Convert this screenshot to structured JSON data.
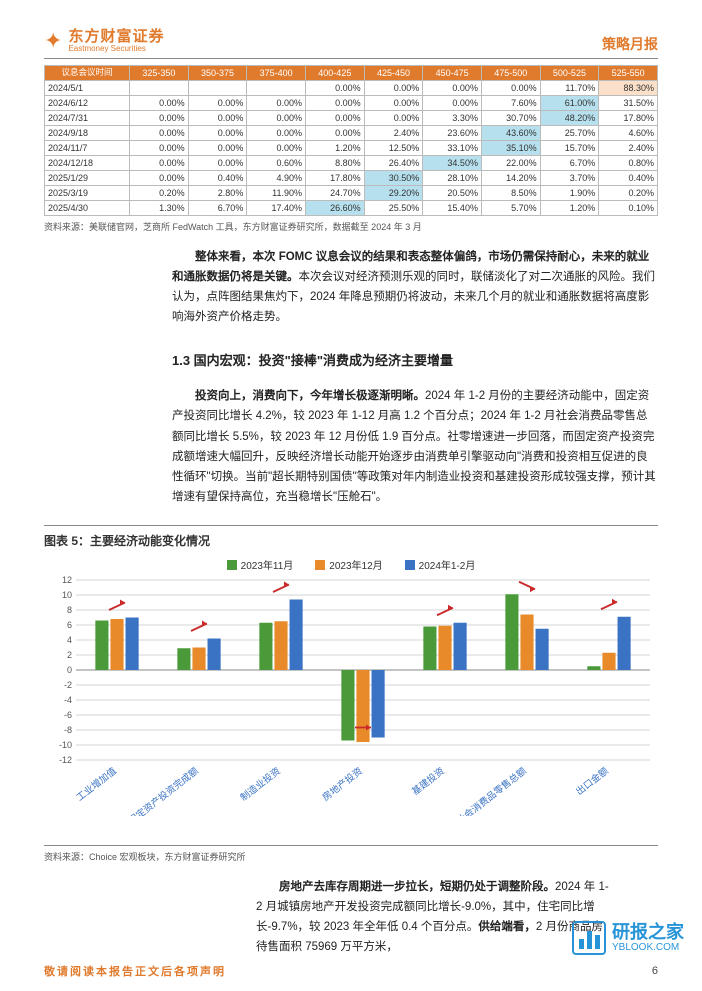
{
  "header": {
    "logo_cn": "东方财富证券",
    "logo_en": "Eastmoney Securities",
    "doc_type": "策略月报"
  },
  "rates_table": {
    "row_header_label": "议息会议时间",
    "col_headers": [
      "325-350",
      "350-375",
      "375-400",
      "400-425",
      "425-450",
      "450-475",
      "475-500",
      "500-525",
      "525-550"
    ],
    "rows": [
      {
        "date": "2024/5/1",
        "cells": [
          "",
          "",
          "",
          "0.00%",
          "0.00%",
          "0.00%",
          "0.00%",
          "11.70%",
          "88.30%"
        ],
        "hl": {
          "8": "peach"
        }
      },
      {
        "date": "2024/6/12",
        "cells": [
          "0.00%",
          "0.00%",
          "0.00%",
          "0.00%",
          "0.00%",
          "0.00%",
          "7.60%",
          "61.00%",
          "31.50%"
        ],
        "hl": {
          "7": "blue"
        }
      },
      {
        "date": "2024/7/31",
        "cells": [
          "0.00%",
          "0.00%",
          "0.00%",
          "0.00%",
          "0.00%",
          "3.30%",
          "30.70%",
          "48.20%",
          "17.80%"
        ],
        "hl": {
          "7": "blue"
        }
      },
      {
        "date": "2024/9/18",
        "cells": [
          "0.00%",
          "0.00%",
          "0.00%",
          "0.00%",
          "2.40%",
          "23.60%",
          "43.60%",
          "25.70%",
          "4.60%"
        ],
        "hl": {
          "6": "blue"
        }
      },
      {
        "date": "2024/11/7",
        "cells": [
          "0.00%",
          "0.00%",
          "0.00%",
          "1.20%",
          "12.50%",
          "33.10%",
          "35.10%",
          "15.70%",
          "2.40%"
        ],
        "hl": {
          "6": "blue"
        }
      },
      {
        "date": "2024/12/18",
        "cells": [
          "0.00%",
          "0.00%",
          "0.60%",
          "8.80%",
          "26.40%",
          "34.50%",
          "22.00%",
          "6.70%",
          "0.80%"
        ],
        "hl": {
          "5": "blue"
        }
      },
      {
        "date": "2025/1/29",
        "cells": [
          "0.00%",
          "0.40%",
          "4.90%",
          "17.80%",
          "30.50%",
          "28.10%",
          "14.20%",
          "3.70%",
          "0.40%"
        ],
        "hl": {
          "4": "blue"
        }
      },
      {
        "date": "2025/3/19",
        "cells": [
          "0.20%",
          "2.80%",
          "11.90%",
          "24.70%",
          "29.20%",
          "20.50%",
          "8.50%",
          "1.90%",
          "0.20%"
        ],
        "hl": {
          "4": "blue"
        }
      },
      {
        "date": "2025/4/30",
        "cells": [
          "1.30%",
          "6.70%",
          "17.40%",
          "26.60%",
          "25.50%",
          "15.40%",
          "5.70%",
          "1.20%",
          "0.10%"
        ],
        "hl": {
          "3": "blue"
        }
      }
    ],
    "source": "资料来源：美联储官网，芝商所 FedWatch 工具，东方财富证券研究所，数据截至 2024 年 3 月"
  },
  "body": {
    "p1_bold_a": "整体来看，本次 FOMC 议息会议的结果和表态整体偏鸽，市场仍需保持耐心，未来的就业和通胀数据仍将是关键。",
    "p1_rest": "本次会议对经济预测乐观的同时，联储淡化了对二次通胀的风险。我们认为，点阵图结果焦灼下，2024 年降息预期仍将波动，未来几个月的就业和通胀数据将高度影响海外资产价格走势。",
    "section_13": "1.3  国内宏观：投资\"接棒\"消费成为经济主要增量",
    "p2_bold": "投资向上，消费向下，今年增长极逐渐明晰。",
    "p2_rest": "2024 年 1-2 月份的主要经济动能中，固定资产投资同比增长 4.2%，较 2023 年 1-12 月高 1.2 个百分点；2024 年 1-2 月社会消费品零售总额同比增长 5.5%，较 2023 年 12 月份低 1.9 百分点。社零增速进一步回落，而固定资产投资完成额增速大幅回升，反映经济增长动能开始逐步由消费单引擎驱动向\"消费和投资相互促进的良性循环\"切换。当前\"超长期特别国债\"等政策对年内制造业投资和基建投资形成较强支撑，预计其增速有望保持高位，充当稳增长\"压舱石\"。",
    "p3_bold": "房地产去库存周期进一步拉长，短期仍处于调整阶段。",
    "p3_rest_a": "2024 年 1-2 月城镇房地产开发投资完成额同比增长-9.0%，其中，住宅同比增长-9.7%，较 2023 年全年低 0.4 个百分点。",
    "p3_bold_b": "供给端看，",
    "p3_rest_b": "2 月份商品房待售面积 75969 万平方米，"
  },
  "chart": {
    "title": "图表 5：主要经济动能变化情况",
    "source": "资料来源：Choice 宏观板块，东方财富证券研究所",
    "legend": [
      "2023年11月",
      "2023年12月",
      "2024年1-2月"
    ],
    "colors": [
      "#4a9a3a",
      "#e88a2a",
      "#3a73c4"
    ],
    "grid_color": "#d4d4d4",
    "bg": "#ffffff",
    "axis_color": "#888",
    "arrow_color": "#cc2a2a",
    "ymin": -12,
    "ymax": 12,
    "ystep": 2,
    "categories": [
      "工业增加值",
      "固定资产投资完成额",
      "制造业投资",
      "房地产投资",
      "基建投资",
      "社会消费品零售总额",
      "出口金额"
    ],
    "series": [
      [
        6.6,
        2.9,
        6.3,
        -9.4,
        5.8,
        10.1,
        0.5
      ],
      [
        6.8,
        3.0,
        6.5,
        -9.6,
        5.9,
        7.4,
        2.3
      ],
      [
        7.0,
        4.2,
        9.4,
        -9.0,
        6.3,
        5.5,
        7.1
      ]
    ],
    "arrows": [
      {
        "cat": 0,
        "dir": "up"
      },
      {
        "cat": 1,
        "dir": "up"
      },
      {
        "cat": 2,
        "dir": "up"
      },
      {
        "cat": 3,
        "dir": "flat"
      },
      {
        "cat": 4,
        "dir": "up"
      },
      {
        "cat": 5,
        "dir": "down"
      },
      {
        "cat": 6,
        "dir": "up"
      }
    ]
  },
  "footer": {
    "warn": "敬请阅读本报告正文后各项声明",
    "page": "6"
  },
  "watermark": {
    "cn": "研报之家",
    "en": "YBLOOK.COM"
  }
}
